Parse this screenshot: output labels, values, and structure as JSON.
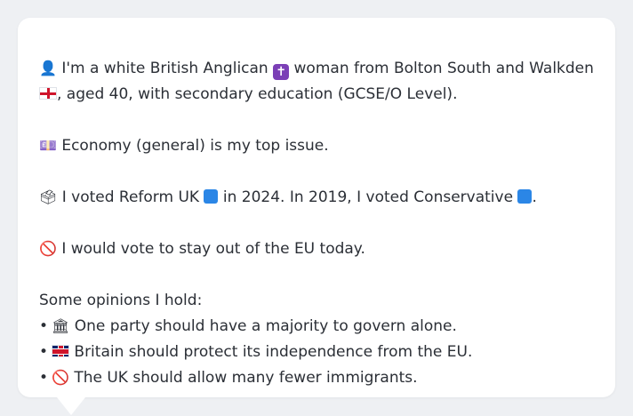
{
  "profile": {
    "icon": "person-silhouette-icon",
    "identity_part1": "I'm a white British Anglican",
    "identity_icon": "latin-cross-icon",
    "identity_part2": "woman from Bolton South and Walkden",
    "region_icon": "england-flag-icon",
    "identity_part3": ", aged 40, with secondary education (GCSE/O Level)."
  },
  "top_issue": {
    "icon": "currency-banknote-icon",
    "text": "Economy (general) is my top issue."
  },
  "vote": {
    "icon": "ballot-box-icon",
    "part1": "I voted Reform UK",
    "party2024_color": "#2b86e6",
    "part2": "in 2024. In 2019, I voted Conservative",
    "party2019_color": "#2b86e6",
    "part3": "."
  },
  "eu": {
    "icon": "no-entry-icon",
    "text": "I would vote to stay out of the EU today."
  },
  "opinions": {
    "heading": "Some opinions I hold:",
    "bullet": "•",
    "items": [
      {
        "icon": "classical-building-icon",
        "text": "One party should have a majority to govern alone."
      },
      {
        "icon": "uk-flag-icon",
        "text": "Britain should protect its independence from the EU."
      },
      {
        "icon": "no-entry-icon",
        "text": "The UK should allow many fewer immigrants."
      }
    ]
  }
}
